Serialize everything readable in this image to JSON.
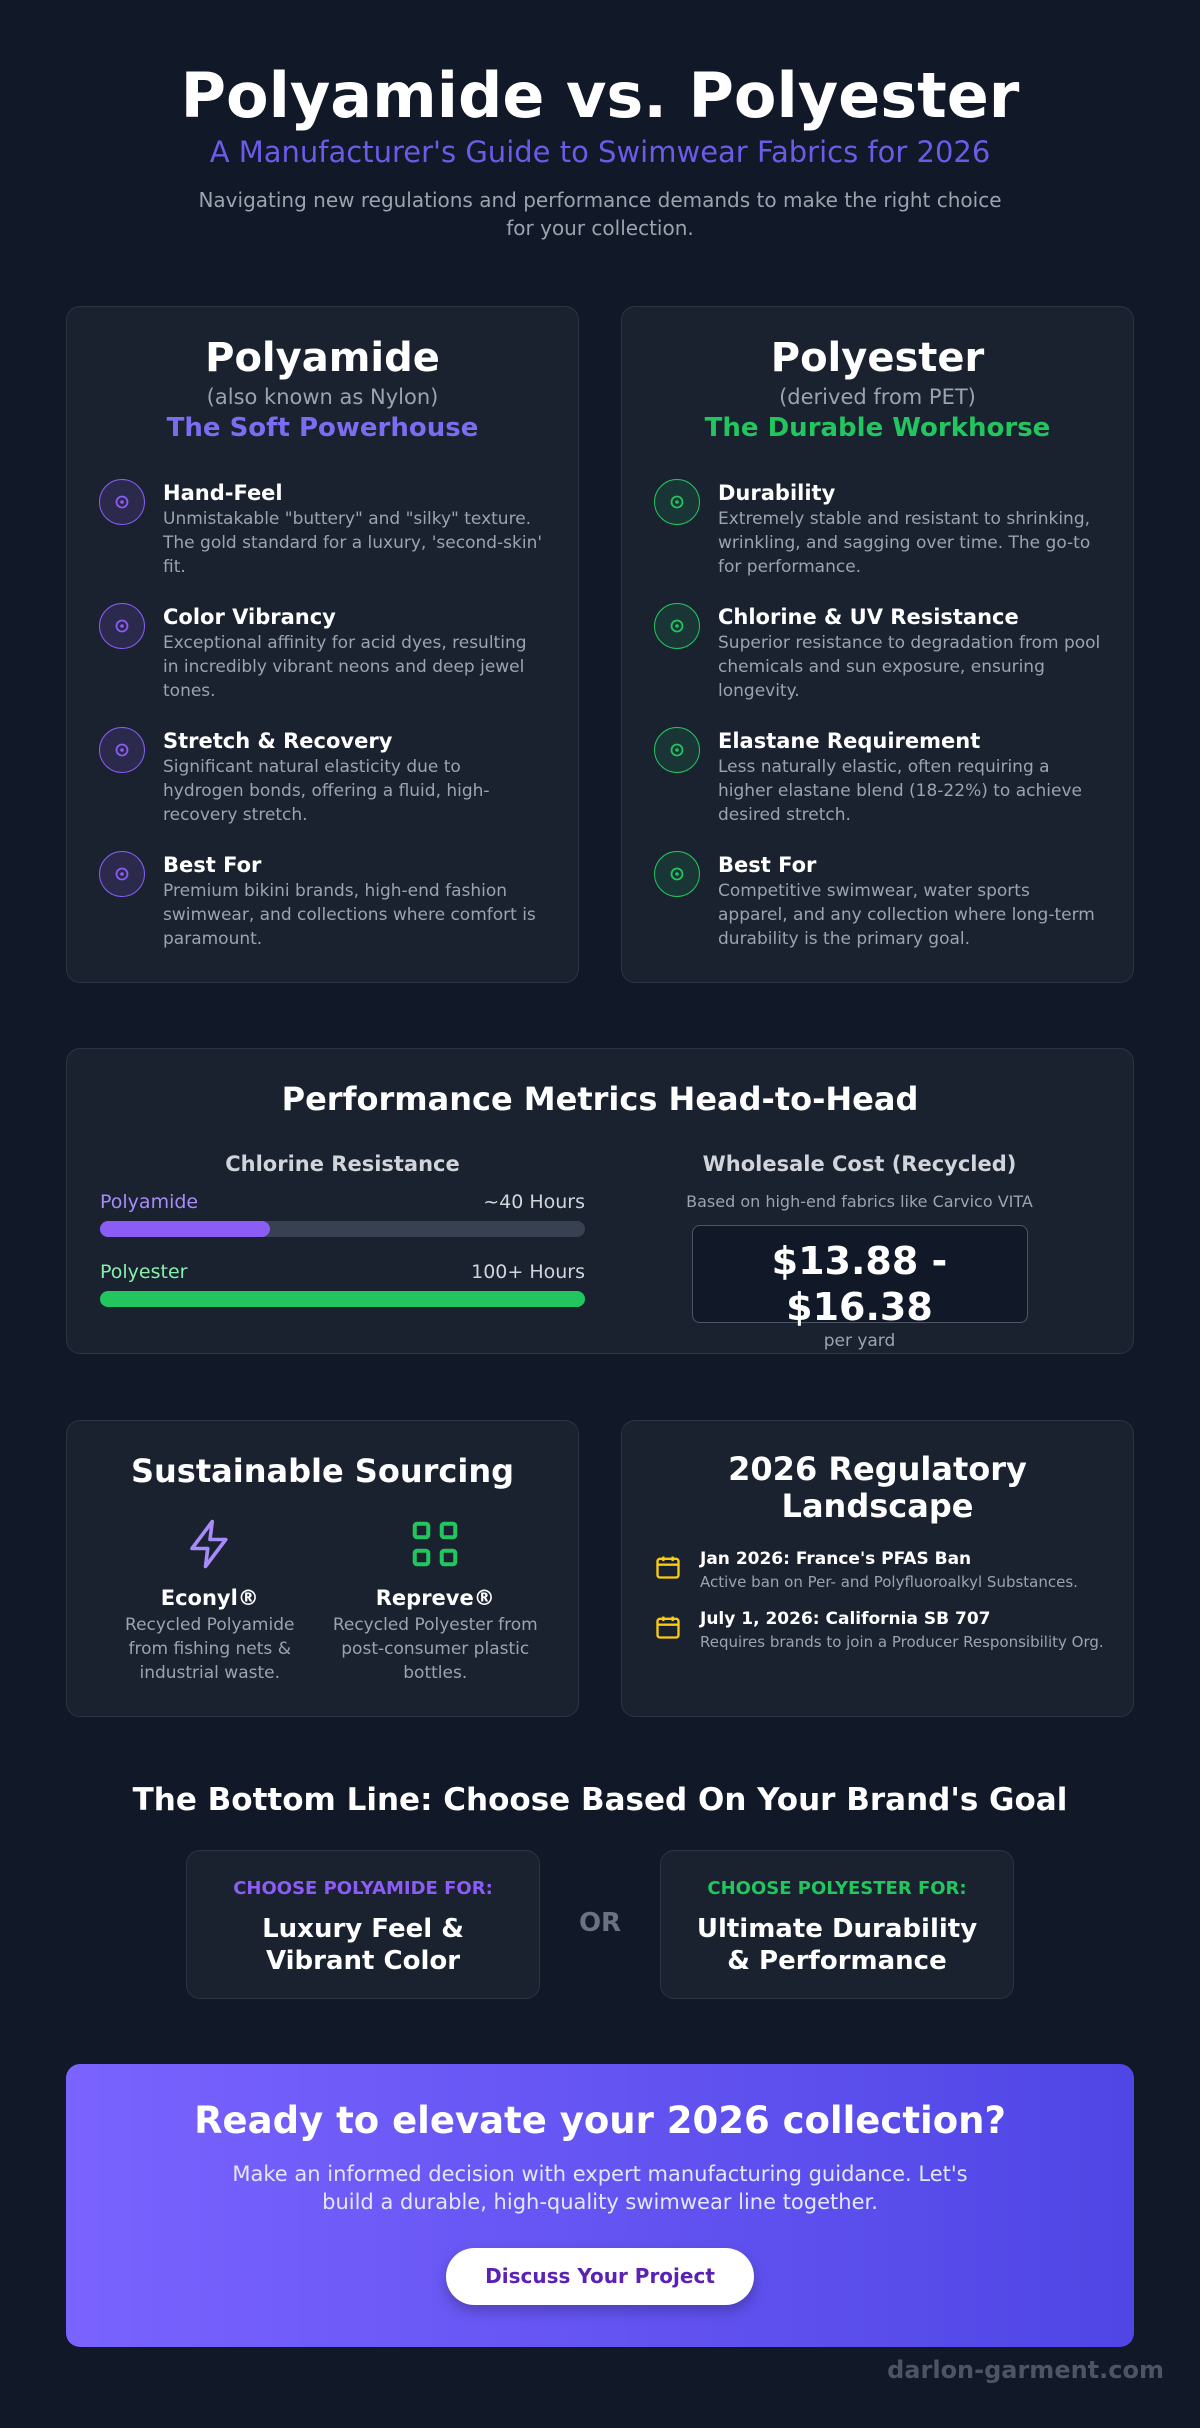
{
  "header": {
    "title": "Polyamide vs. Polyester",
    "subtitle": "A Manufacturer's Guide to Swimwear Fabrics for 2026",
    "intro": "Navigating new regulations and performance demands to make the right choice for your collection."
  },
  "fabrics": [
    {
      "name": "Polyamide",
      "aka": "(also known as Nylon)",
      "tagline": "The Soft Powerhouse",
      "features": [
        {
          "title": "Hand-Feel",
          "text": "Unmistakable \"buttery\" and \"silky\" texture. The gold standard for a luxury, 'second-skin' fit."
        },
        {
          "title": "Color Vibrancy",
          "text": "Exceptional affinity for acid dyes, resulting in incredibly vibrant neons and deep jewel tones."
        },
        {
          "title": "Stretch & Recovery",
          "text": "Significant natural elasticity due to hydrogen bonds, offering a fluid, high-recovery stretch."
        },
        {
          "title": "Best For",
          "text": "Premium bikini brands, high-end fashion swimwear, and collections where comfort is paramount."
        }
      ]
    },
    {
      "name": "Polyester",
      "aka": "(derived from PET)",
      "tagline": "The Durable Workhorse",
      "features": [
        {
          "title": "Durability",
          "text": "Extremely stable and resistant to shrinking, wrinkling, and sagging over time. The go-to for performance."
        },
        {
          "title": "Chlorine & UV Resistance",
          "text": "Superior resistance to degradation from pool chemicals and sun exposure, ensuring longevity."
        },
        {
          "title": "Elastane Requirement",
          "text": "Less naturally elastic, often requiring a higher elastane blend (18-22%) to achieve desired stretch."
        },
        {
          "title": "Best For",
          "text": "Competitive swimwear, water sports apparel, and any collection where long-term durability is the primary goal."
        }
      ]
    }
  ],
  "metrics": {
    "title": "Performance Metrics Head-to-Head",
    "chlorine": {
      "title": "Chlorine Resistance",
      "rows": [
        {
          "label": "Polyamide",
          "value": "~40 Hours"
        },
        {
          "label": "Polyester",
          "value": "100+ Hours"
        }
      ]
    },
    "cost": {
      "title": "Wholesale Cost (Recycled)",
      "note": "Based on high-end fabrics like Carvico VITA",
      "price": "$13.88 - $16.38",
      "unit": "per yard"
    }
  },
  "sourcing": {
    "title": "Sustainable Sourcing",
    "items": [
      {
        "name": "Econyl®",
        "text": "Recycled Polyamide from fishing nets & industrial waste."
      },
      {
        "name": "Repreve®",
        "text": "Recycled Polyester from post-consumer plastic bottles."
      }
    ]
  },
  "regulatory": {
    "title": "2026 Regulatory Landscape",
    "items": [
      {
        "title": "Jan 2026: France's PFAS Ban",
        "text": "Active ban on Per- and Polyfluoroalkyl Substances."
      },
      {
        "title": "July 1, 2026: California SB 707",
        "text": "Requires brands to join a Producer Responsibility Org."
      }
    ]
  },
  "bottom_line": {
    "title": "The Bottom Line: Choose Based On Your Brand's Goal",
    "or": "OR",
    "choices": [
      {
        "label": "CHOOSE POLYAMIDE FOR:",
        "text": "Luxury Feel & Vibrant Color"
      },
      {
        "label": "CHOOSE POLYESTER FOR:",
        "text": "Ultimate Durability & Performance"
      }
    ]
  },
  "cta": {
    "title": "Ready to elevate your 2026 collection?",
    "text": "Make an informed decision with expert manufacturing guidance. Let's build a durable, high-quality swimwear line together.",
    "button": "Discuss Your Project"
  },
  "footer": "darlon-garment.com"
}
